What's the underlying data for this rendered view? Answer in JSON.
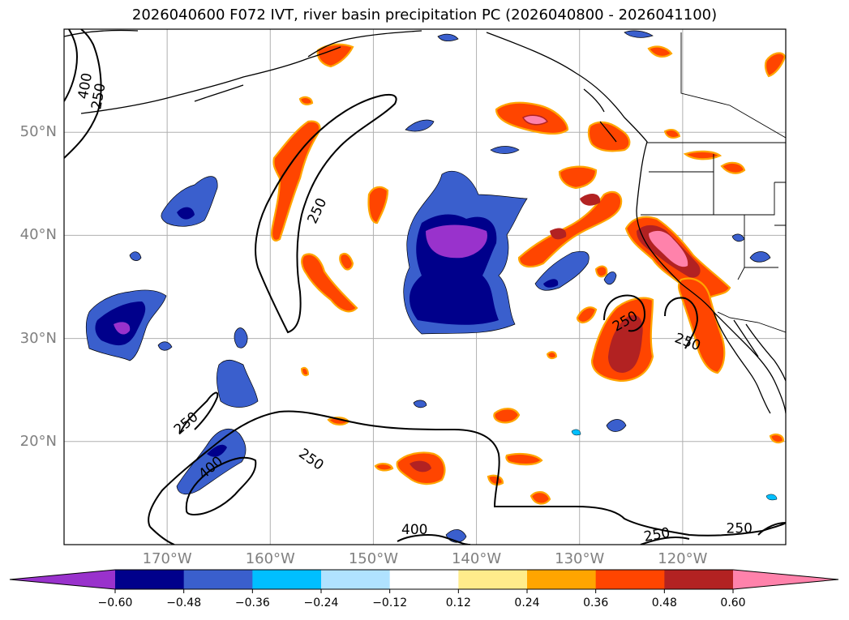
{
  "title": "2026040600 F072 IVT, river basin precipitation PC (2026040800 - 2026041100)",
  "map": {
    "projection": "PlateCarree",
    "lon_range": [
      -180,
      -110
    ],
    "lat_range": [
      10,
      60
    ],
    "lat_ticks": [
      {
        "label": "50°N",
        "value": 50
      },
      {
        "label": "40°N",
        "value": 40
      },
      {
        "label": "30°N",
        "value": 30
      },
      {
        "label": "20°N",
        "value": 20
      }
    ],
    "lon_ticks": [
      {
        "label": "170°W",
        "value": -170
      },
      {
        "label": "160°W",
        "value": -160
      },
      {
        "label": "150°W",
        "value": -150
      },
      {
        "label": "140°W",
        "value": -140
      },
      {
        "label": "130°W",
        "value": -130
      },
      {
        "label": "120°W",
        "value": -120
      }
    ]
  },
  "ivt_contours": {
    "levels": [
      250,
      400
    ],
    "labels": [
      {
        "text": "400",
        "lon": -178,
        "lat": 54.5,
        "rot": -80
      },
      {
        "text": "250",
        "lon": -176.7,
        "lat": 53.5,
        "rot": -80
      },
      {
        "text": "250",
        "lon": -155.5,
        "lat": 42.4,
        "rot": -65
      },
      {
        "text": "250",
        "lon": -125.6,
        "lat": 31.7,
        "rot": -30
      },
      {
        "text": "250",
        "lon": -119.5,
        "lat": 29.7,
        "rot": 20
      },
      {
        "text": "250",
        "lon": -168.2,
        "lat": 21.8,
        "rot": -40
      },
      {
        "text": "400",
        "lon": -165.8,
        "lat": 17.5,
        "rot": -40
      },
      {
        "text": "250",
        "lon": -156,
        "lat": 18.3,
        "rot": 35
      },
      {
        "text": "400",
        "lon": -146,
        "lat": 11.5,
        "rot": 0
      },
      {
        "text": "250",
        "lon": -122.5,
        "lat": 11,
        "rot": -10
      },
      {
        "text": "250",
        "lon": -114.5,
        "lat": 11.6,
        "rot": 0
      }
    ]
  },
  "colorbar": {
    "ticks": [
      "−0.60",
      "−0.48",
      "−0.36",
      "−0.24",
      "−0.12",
      "0.12",
      "0.24",
      "0.36",
      "0.48",
      "0.60"
    ],
    "colors": [
      "#9932CC",
      "#00008B",
      "#3A5FCD",
      "#00BFFF",
      "#B0E2FF",
      "#FFFFFF",
      "#FFEC8B",
      "#FFA500",
      "#FF4500",
      "#B22222",
      "#FF82AB"
    ]
  },
  "colors": {
    "coast": "#000000",
    "grid": "#b0b0b0",
    "tick_text": "#808080"
  }
}
